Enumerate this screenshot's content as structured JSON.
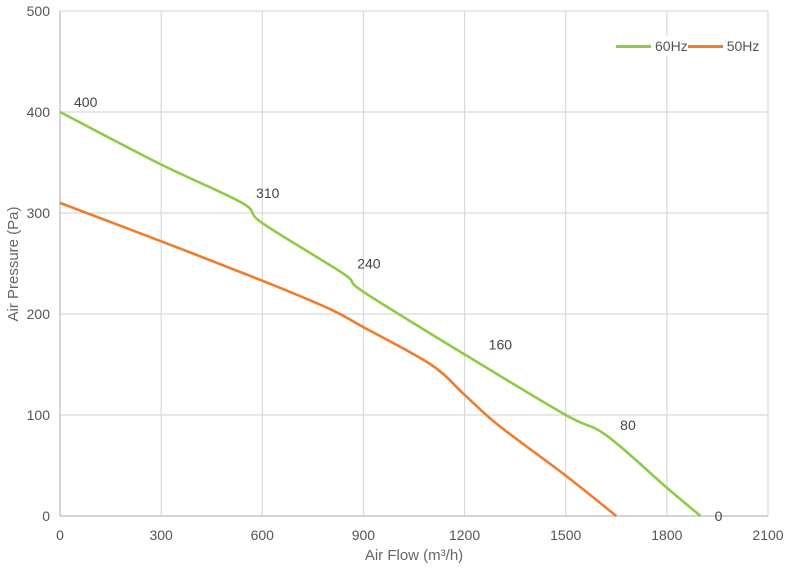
{
  "chart_data": {
    "type": "line",
    "title": "",
    "xlabel": "Air Flow  (m³/h)",
    "ylabel": "Air Pressure  (Pa)",
    "xlim": [
      0,
      2100
    ],
    "ylim": [
      0,
      500
    ],
    "x_ticks": [
      "0",
      "300",
      "600",
      "900",
      "1200",
      "1500",
      "1800",
      "2100"
    ],
    "y_ticks": [
      "0",
      "100",
      "200",
      "300",
      "400",
      "500"
    ],
    "grid": true,
    "legend_position": "top-right",
    "series": [
      {
        "name": "60Hz",
        "color": "#8dcc46",
        "points": [
          [
            0,
            400
          ],
          [
            300,
            348
          ],
          [
            540,
            310
          ],
          [
            600,
            290
          ],
          [
            840,
            240
          ],
          [
            900,
            222
          ],
          [
            1200,
            160
          ],
          [
            1500,
            100
          ],
          [
            1620,
            80
          ],
          [
            1800,
            28
          ],
          [
            1900,
            0
          ]
        ],
        "labels": [
          {
            "x": 0,
            "y": 400,
            "text": "400"
          },
          {
            "x": 540,
            "y": 310,
            "text": "310"
          },
          {
            "x": 840,
            "y": 240,
            "text": "240"
          },
          {
            "x": 1230,
            "y": 160,
            "text": "160"
          },
          {
            "x": 1620,
            "y": 80,
            "text": "80"
          },
          {
            "x": 1900,
            "y": 0,
            "text": "0"
          }
        ]
      },
      {
        "name": "50Hz",
        "color": "#ee7d2e",
        "points": [
          [
            0,
            310
          ],
          [
            300,
            272
          ],
          [
            600,
            233
          ],
          [
            800,
            205
          ],
          [
            900,
            187
          ],
          [
            1100,
            150
          ],
          [
            1200,
            120
          ],
          [
            1300,
            90
          ],
          [
            1500,
            40
          ],
          [
            1650,
            0
          ]
        ]
      }
    ]
  },
  "legend": {
    "items": [
      {
        "label": "60Hz",
        "color": "#8dcc46"
      },
      {
        "label": "50Hz",
        "color": "#ee7d2e"
      }
    ]
  }
}
